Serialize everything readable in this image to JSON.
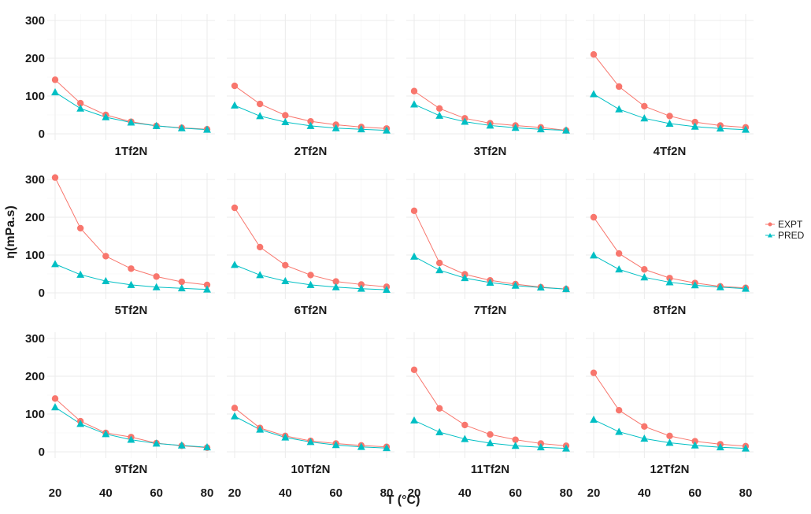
{
  "chart_data": {
    "type": "line",
    "facet_layout": "4 columns x 3 rows",
    "xlabel": "T (°C)",
    "ylabel": "η(mPa.s)",
    "xlim": [
      20,
      80
    ],
    "ylim": [
      0,
      300
    ],
    "x_ticks": [
      20,
      40,
      60,
      80
    ],
    "y_ticks": [
      0,
      100,
      200,
      300
    ],
    "x": [
      20,
      30,
      40,
      50,
      60,
      70,
      80
    ],
    "legend": {
      "placement": "right",
      "entries": [
        {
          "name": "EXPT",
          "color": "#F8766D",
          "marker": "circle"
        },
        {
          "name": "PRED",
          "color": "#00BFC4",
          "marker": "triangle"
        }
      ]
    },
    "panels": [
      {
        "label": "1Tf2N",
        "series": [
          {
            "name": "EXPT",
            "values": [
              143,
              81,
              50,
              32,
              21,
              16,
              12
            ]
          },
          {
            "name": "PRED",
            "values": [
              110,
              67,
              44,
              30,
              21,
              15,
              11
            ]
          }
        ]
      },
      {
        "label": "2Tf2N",
        "series": [
          {
            "name": "EXPT",
            "values": [
              127,
              79,
              49,
              33,
              24,
              18,
              14
            ]
          },
          {
            "name": "PRED",
            "values": [
              75,
              47,
              31,
              21,
              15,
              12,
              9
            ]
          }
        ]
      },
      {
        "label": "3Tf2N",
        "series": [
          {
            "name": "EXPT",
            "values": [
              113,
              67,
              41,
              28,
              22,
              17,
              9
            ]
          },
          {
            "name": "PRED",
            "values": [
              78,
              48,
              32,
              22,
              16,
              12,
              9
            ]
          }
        ]
      },
      {
        "label": "4Tf2N",
        "series": [
          {
            "name": "EXPT",
            "values": [
              210,
              125,
              73,
              47,
              31,
              22,
              17
            ]
          },
          {
            "name": "PRED",
            "values": [
              105,
              65,
              41,
              27,
              19,
              14,
              11
            ]
          }
        ]
      },
      {
        "label": "5Tf2N",
        "series": [
          {
            "name": "EXPT",
            "values": [
              305,
              171,
              97,
              64,
              43,
              29,
              21
            ]
          },
          {
            "name": "PRED",
            "values": [
              76,
              48,
              31,
              21,
              15,
              12,
              9
            ]
          }
        ]
      },
      {
        "label": "6Tf2N",
        "series": [
          {
            "name": "EXPT",
            "values": [
              225,
              121,
              73,
              47,
              30,
              22,
              16
            ]
          },
          {
            "name": "PRED",
            "values": [
              74,
              47,
              31,
              21,
              15,
              11,
              8
            ]
          }
        ]
      },
      {
        "label": "7Tf2N",
        "series": [
          {
            "name": "EXPT",
            "values": [
              217,
              79,
              49,
              33,
              23,
              15,
              10
            ]
          },
          {
            "name": "PRED",
            "values": [
              96,
              60,
              39,
              27,
              19,
              14,
              10
            ]
          }
        ]
      },
      {
        "label": "8Tf2N",
        "series": [
          {
            "name": "EXPT",
            "values": [
              200,
              104,
              62,
              39,
              26,
              17,
              13
            ]
          },
          {
            "name": "PRED",
            "values": [
              99,
              62,
              41,
              28,
              20,
              15,
              11
            ]
          }
        ]
      },
      {
        "label": "9Tf2N",
        "series": [
          {
            "name": "EXPT",
            "values": [
              141,
              81,
              50,
              39,
              23,
              16,
              11
            ]
          },
          {
            "name": "PRED",
            "values": [
              118,
              74,
              47,
              32,
              22,
              17,
              12
            ]
          }
        ]
      },
      {
        "label": "10Tf2N",
        "series": [
          {
            "name": "EXPT",
            "values": [
              116,
              63,
              42,
              29,
              22,
              17,
              13
            ]
          },
          {
            "name": "PRED",
            "values": [
              94,
              59,
              38,
              26,
              18,
              13,
              10
            ]
          }
        ]
      },
      {
        "label": "11Tf2N",
        "series": [
          {
            "name": "EXPT",
            "values": [
              217,
              115,
              71,
              46,
              32,
              22,
              16
            ]
          },
          {
            "name": "PRED",
            "values": [
              83,
              52,
              34,
              23,
              16,
              12,
              9
            ]
          }
        ]
      },
      {
        "label": "12Tf2N",
        "series": [
          {
            "name": "EXPT",
            "values": [
              209,
              110,
              67,
              42,
              28,
              20,
              15
            ]
          },
          {
            "name": "PRED",
            "values": [
              85,
              53,
              35,
              24,
              17,
              12,
              9
            ]
          }
        ]
      }
    ]
  }
}
